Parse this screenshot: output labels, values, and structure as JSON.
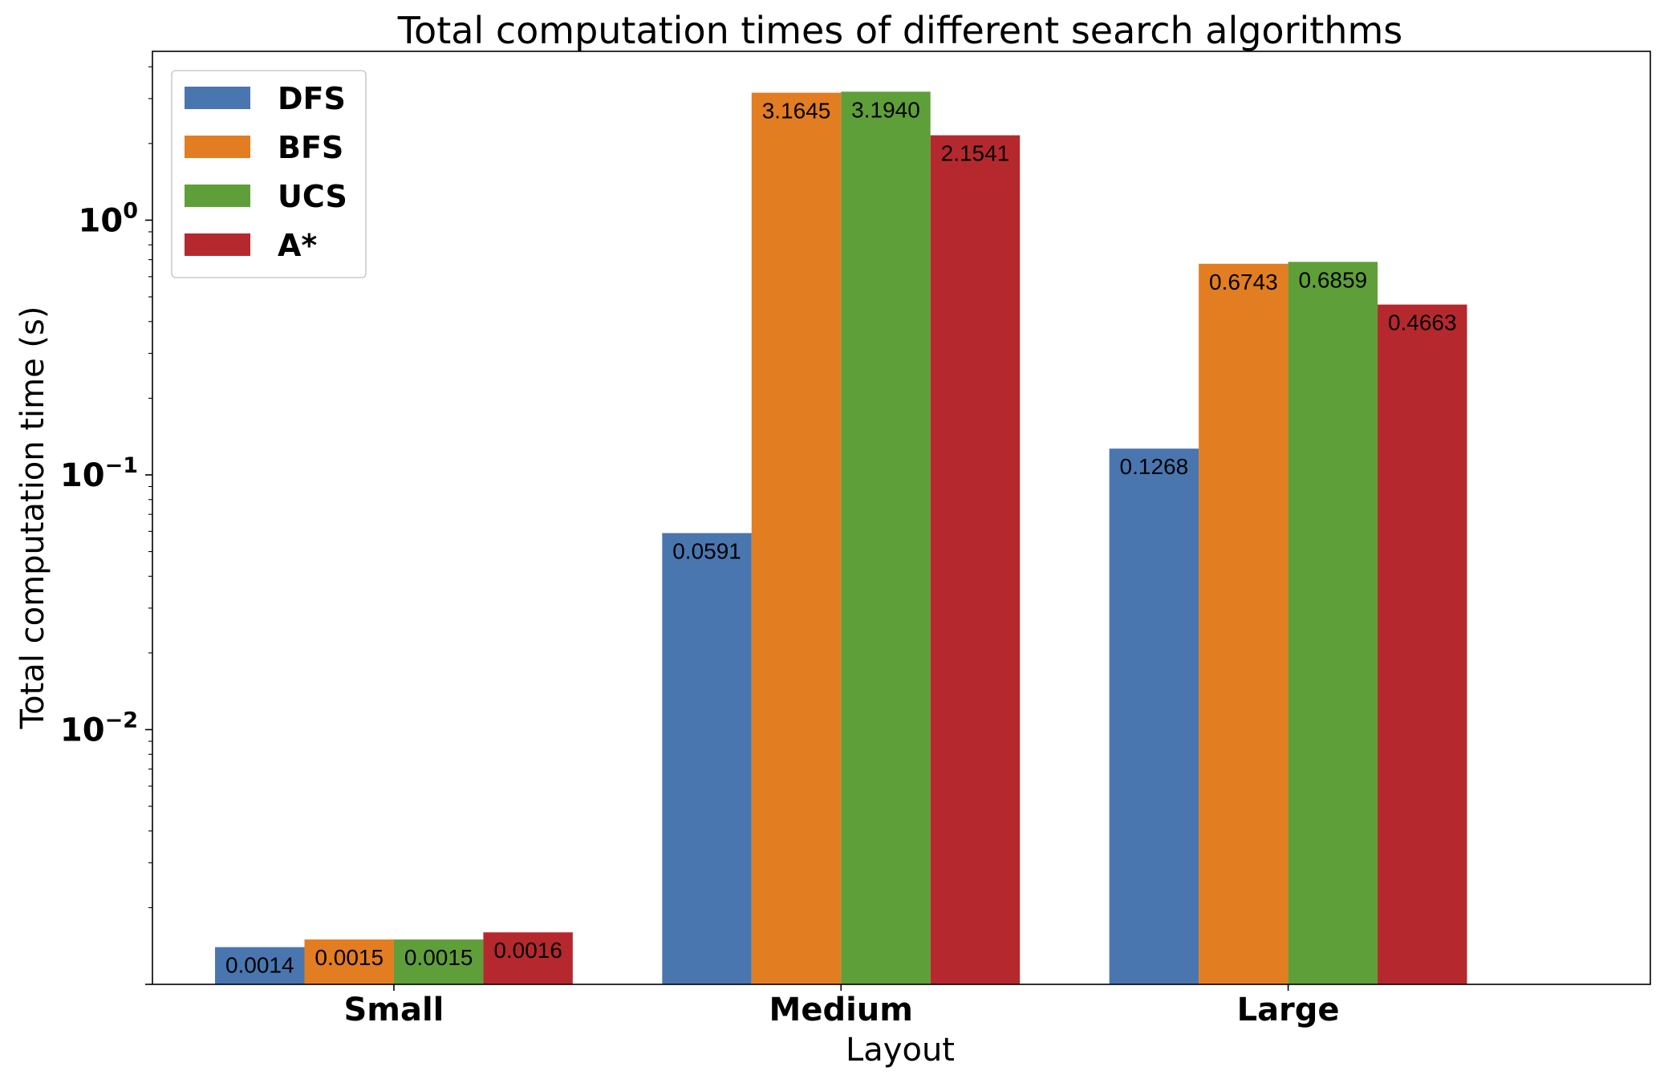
{
  "chart_data": {
    "type": "bar",
    "title": "Total computation times of different search algorithms",
    "xlabel": "Layout",
    "ylabel": "Total computation time (s)",
    "yscale": "log",
    "ylim": [
      0.001,
      4.6
    ],
    "yticks": [
      {
        "value": 1,
        "base": "10",
        "exp": "0"
      },
      {
        "value": 0.1,
        "base": "10",
        "exp": "−1"
      },
      {
        "value": 0.01,
        "base": "10",
        "exp": "−2"
      }
    ],
    "categories": [
      "Small",
      "Medium",
      "Large"
    ],
    "series": [
      {
        "name": "DFS",
        "color": "#4a76b0",
        "values": [
          0.0014,
          0.0591,
          0.1268
        ],
        "labels": [
          "0.0014",
          "0.0591",
          "0.1268"
        ]
      },
      {
        "name": "BFS",
        "color": "#e27d22",
        "values": [
          0.0015,
          3.1645,
          0.6743
        ],
        "labels": [
          "0.0015",
          "3.1645",
          "0.6743"
        ]
      },
      {
        "name": "UCS",
        "color": "#5f9f39",
        "values": [
          0.0015,
          3.194,
          0.6859
        ],
        "labels": [
          "0.0015",
          "3.1940",
          "0.6859"
        ]
      },
      {
        "name": "A*",
        "color": "#b5292e",
        "values": [
          0.0016,
          2.1541,
          0.4663
        ],
        "labels": [
          "0.0016",
          "2.1541",
          "0.4663"
        ]
      }
    ],
    "grid": false,
    "legend_position": "top-left"
  }
}
